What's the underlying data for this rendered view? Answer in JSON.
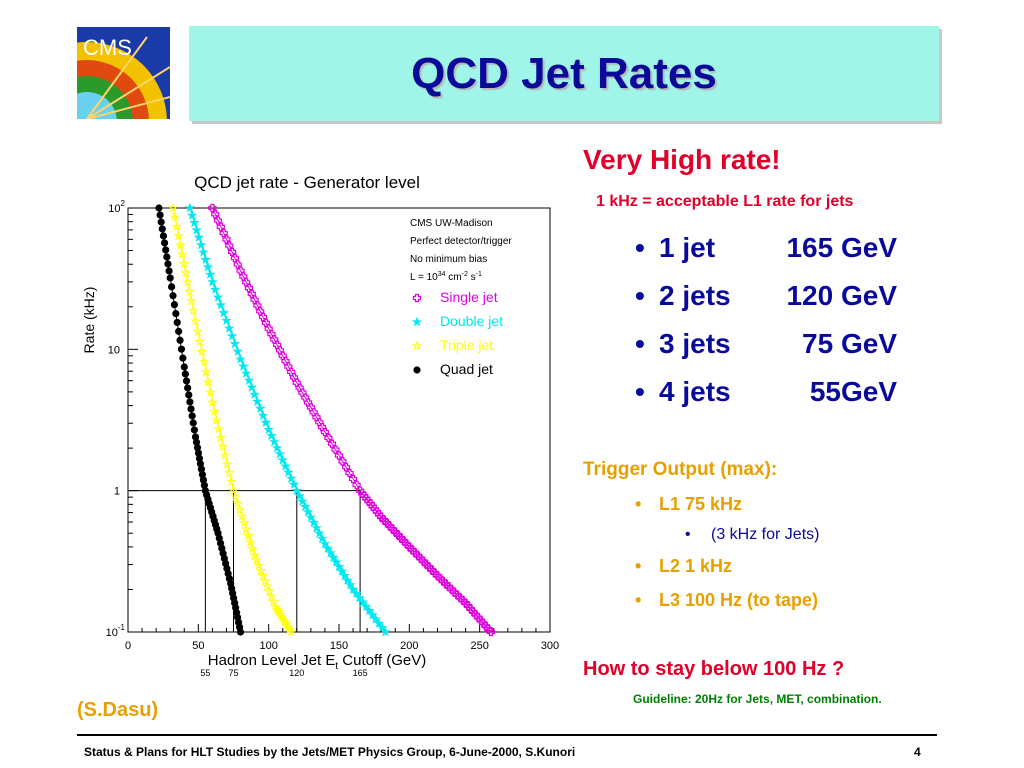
{
  "logo": {
    "text": "CMS"
  },
  "title": "QCD Jet Rates",
  "chart_data": {
    "type": "line",
    "title": "QCD jet rate - Generator level",
    "xlabel": "Hadron Level Jet E",
    "xlabel_sub": "t",
    "xlabel_tail": " Cutoff (GeV)",
    "ylabel": "Rate (kHz)",
    "xlim": [
      0,
      300
    ],
    "ylog": true,
    "ylim": [
      0.1,
      100
    ],
    "x_ticks": [
      "0",
      "50",
      "100",
      "150",
      "200",
      "250",
      "300"
    ],
    "y_ticks": [
      {
        "base": "10",
        "exp": "2",
        "v": 100
      },
      {
        "base": "10",
        "exp": "",
        "v": 10
      },
      {
        "base": "1",
        "exp": "",
        "v": 1
      },
      {
        "base": "10",
        "exp": "-1",
        "v": 0.1
      }
    ],
    "notes": [
      "CMS UW-Madison",
      "Perfect detector/trigger",
      "No minimum bias"
    ],
    "lumi": {
      "pre": "L = 10",
      "e1": "34",
      "mid": " cm",
      "e2": "-2",
      "mid2": " s",
      "e3": "-1"
    },
    "cutoffs": [
      {
        "label": "55",
        "x": 55
      },
      {
        "label": "75",
        "x": 75
      },
      {
        "label": "120",
        "x": 120
      },
      {
        "label": "165",
        "x": 165
      }
    ],
    "series": [
      {
        "name": "Single jet",
        "color": "#e000e0",
        "marker": "open-cross",
        "x": [
          60,
          80,
          100,
          120,
          140,
          165,
          180,
          200,
          220,
          240,
          258
        ],
        "y": [
          100,
          36,
          14,
          5.8,
          2.6,
          1.0,
          0.65,
          0.4,
          0.25,
          0.16,
          0.1
        ]
      },
      {
        "name": "Double jet",
        "color": "#00e8f0",
        "marker": "star",
        "x": [
          44,
          60,
          80,
          100,
          120,
          140,
          160,
          183
        ],
        "y": [
          100,
          30,
          8.5,
          2.7,
          1.0,
          0.42,
          0.2,
          0.1
        ]
      },
      {
        "name": "Triple jet",
        "color": "#ffff00",
        "marker": "open-star",
        "x": [
          32,
          45,
          60,
          75,
          90,
          105,
          116
        ],
        "y": [
          100,
          22,
          4.2,
          1.0,
          0.35,
          0.15,
          0.1
        ]
      },
      {
        "name": "Quad jet",
        "color": "#000000",
        "marker": "dot",
        "x": [
          22,
          30,
          40,
          48,
          55,
          64,
          73,
          80
        ],
        "y": [
          100,
          32,
          7.5,
          2.4,
          1.0,
          0.5,
          0.22,
          0.1
        ]
      }
    ]
  },
  "right": {
    "headline": "Very High rate!",
    "subnote": "1 kHz = acceptable L1 rate for jets",
    "bullet": "•",
    "jets": [
      {
        "name": "1 jet",
        "value": "165 GeV"
      },
      {
        "name": "2 jets",
        "value": "120 GeV"
      },
      {
        "name": "3 jets",
        "value": "75 GeV"
      },
      {
        "name": "4 jets",
        "value": "55GeV"
      }
    ],
    "trigger_heading": "Trigger Output (max):",
    "trigger_items": [
      "L1  75 kHz",
      "L2  1 kHz",
      "L3  100 Hz (to tape)"
    ],
    "trigger_sub": "(3 kHz for Jets)",
    "how": "How to stay below 100 Hz ?",
    "guideline": "Guideline: 20Hz for Jets, MET, combination."
  },
  "credit": "(S.Dasu)",
  "footer": {
    "text": "Status & Plans for HLT Studies by the Jets/MET Physics Group, 6-June-2000, S.Kunori",
    "page": "4"
  }
}
